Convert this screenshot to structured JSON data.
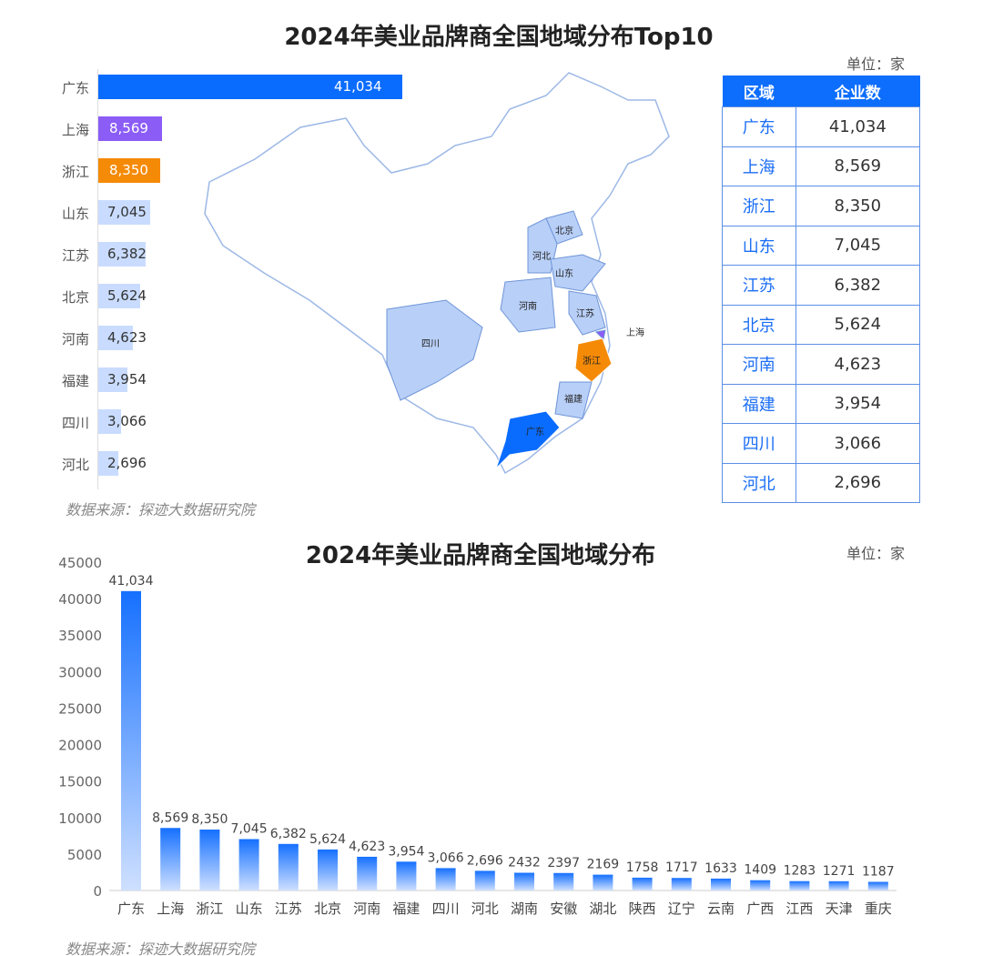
{
  "top": {
    "title": "2024年美业品牌商全国地域分布Top10",
    "unit": "单位：家",
    "source": "数据来源：探迹大数据研究院",
    "table_headers": [
      "区域",
      "企业数"
    ],
    "map_labels": [
      "北京",
      "河北",
      "山东",
      "河南",
      "江苏",
      "上海",
      "浙江",
      "福建",
      "广东",
      "四川"
    ]
  },
  "bottom": {
    "title": "2024年美业品牌商全国地域分布",
    "unit": "单位：家",
    "source": "数据来源：探迹大数据研究院"
  },
  "colors": {
    "guangdong": "#0a6cff",
    "shanghai": "#8b5cf6",
    "zhejiang": "#f58a07",
    "others": "#c9dcff",
    "table_header": "#0d6efd"
  },
  "chart_data": [
    {
      "type": "bar",
      "orientation": "horizontal",
      "title": "2024年美业品牌商全国地域分布Top10",
      "categories": [
        "广东",
        "上海",
        "浙江",
        "山东",
        "江苏",
        "北京",
        "河南",
        "福建",
        "四川",
        "河北"
      ],
      "values": [
        41034,
        8569,
        8350,
        7045,
        6382,
        5624,
        4623,
        3954,
        3066,
        2696
      ],
      "value_labels": [
        "41,034",
        "8,569",
        "8,350",
        "7,045",
        "6,382",
        "5,624",
        "4,623",
        "3,954",
        "3,066",
        "2,696"
      ]
    },
    {
      "type": "bar",
      "title": "2024年美业品牌商全国地域分布",
      "categories": [
        "广东",
        "上海",
        "浙江",
        "山东",
        "江苏",
        "北京",
        "河南",
        "福建",
        "四川",
        "河北",
        "湖南",
        "安徽",
        "湖北",
        "陕西",
        "辽宁",
        "云南",
        "广西",
        "江西",
        "天津",
        "重庆"
      ],
      "values": [
        41034,
        8569,
        8350,
        7045,
        6382,
        5624,
        4623,
        3954,
        3066,
        2696,
        2432,
        2397,
        2169,
        1758,
        1717,
        1633,
        1409,
        1283,
        1271,
        1187
      ],
      "value_labels": [
        "41,034",
        "8,569",
        "8,350",
        "7,045",
        "6,382",
        "5,624",
        "4,623",
        "3,954",
        "3,066",
        "2,696",
        "2432",
        "2397",
        "2169",
        "1758",
        "1717",
        "1633",
        "1409",
        "1283",
        "1271",
        "1187"
      ],
      "ylim": [
        0,
        45000
      ],
      "yticks": [
        0,
        5000,
        10000,
        15000,
        20000,
        25000,
        30000,
        35000,
        40000,
        45000
      ],
      "grid": false
    }
  ]
}
